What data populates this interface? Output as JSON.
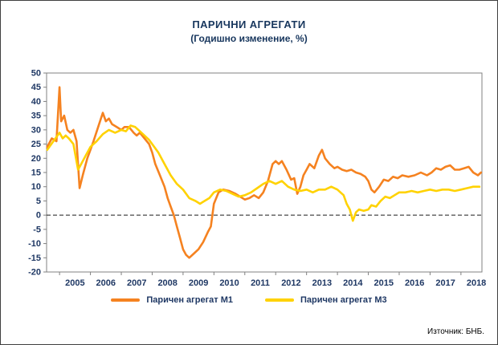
{
  "chart_data": {
    "type": "line",
    "title": "ПАРИЧНИ АГРЕГАТИ",
    "subtitle": "(Годишно изменение, %)",
    "xlabel": "",
    "ylabel": "",
    "source": "Източник: БНБ.",
    "grid": false,
    "zero_line": "dashed",
    "legend_position": "bottom",
    "xlim": [
      2004.58,
      2018.68
    ],
    "ylim": [
      -20,
      50
    ],
    "x_ticks": [
      2005,
      2006,
      2007,
      2008,
      2009,
      2010,
      2011,
      2012,
      2013,
      2014,
      2015,
      2016,
      2017,
      2018
    ],
    "y_ticks": [
      50,
      45,
      40,
      35,
      30,
      25,
      20,
      15,
      10,
      5,
      0,
      -5,
      -10,
      -15,
      -20
    ],
    "series": [
      {
        "name": "Паричен агрегат М1",
        "color": "#F58220",
        "x": [
          2004.6,
          2004.75,
          2004.9,
          2005.0,
          2005.05,
          2005.15,
          2005.25,
          2005.35,
          2005.45,
          2005.55,
          2005.65,
          2005.75,
          2005.9,
          2006.0,
          2006.1,
          2006.25,
          2006.4,
          2006.5,
          2006.6,
          2006.7,
          2006.85,
          2007.0,
          2007.1,
          2007.25,
          2007.4,
          2007.5,
          2007.6,
          2007.75,
          2007.9,
          2008.0,
          2008.1,
          2008.25,
          2008.4,
          2008.5,
          2008.6,
          2008.7,
          2008.8,
          2008.9,
          2009.0,
          2009.1,
          2009.2,
          2009.35,
          2009.5,
          2009.65,
          2009.8,
          2009.9,
          2010.0,
          2010.15,
          2010.3,
          2010.5,
          2010.7,
          2010.85,
          2011.0,
          2011.15,
          2011.3,
          2011.45,
          2011.6,
          2011.75,
          2011.9,
          2012.0,
          2012.1,
          2012.2,
          2012.35,
          2012.5,
          2012.6,
          2012.7,
          2012.8,
          2012.9,
          2013.0,
          2013.1,
          2013.25,
          2013.4,
          2013.5,
          2013.6,
          2013.75,
          2013.9,
          2014.0,
          2014.15,
          2014.3,
          2014.45,
          2014.6,
          2014.75,
          2014.9,
          2015.0,
          2015.1,
          2015.2,
          2015.35,
          2015.5,
          2015.65,
          2015.8,
          2015.95,
          2016.1,
          2016.3,
          2016.5,
          2016.7,
          2016.9,
          2017.05,
          2017.2,
          2017.35,
          2017.5,
          2017.65,
          2017.8,
          2017.95,
          2018.1,
          2018.25,
          2018.4,
          2018.55,
          2018.65
        ],
        "y": [
          24,
          27,
          26,
          45,
          33,
          35,
          30,
          29,
          30,
          26,
          9.5,
          14,
          20,
          23,
          26,
          31,
          36,
          33,
          34,
          32,
          31,
          30,
          31,
          31,
          29,
          28,
          29,
          27,
          25,
          22,
          18,
          14,
          10,
          6,
          3,
          0,
          -4,
          -8,
          -12,
          -14,
          -15,
          -13.5,
          -12,
          -9.5,
          -6,
          -4,
          4,
          8,
          9,
          8.5,
          7.5,
          6.5,
          5.5,
          6,
          7,
          6,
          8,
          12,
          18,
          19,
          18,
          19,
          16,
          12.5,
          13,
          7.5,
          10,
          14,
          16,
          18,
          16.5,
          21,
          23,
          20,
          18,
          16.5,
          17,
          16,
          15.5,
          16,
          15,
          14.5,
          13.5,
          12,
          9,
          8,
          10,
          12.5,
          12,
          13.5,
          13,
          14,
          13.5,
          14,
          15,
          14,
          15,
          16.5,
          16,
          17,
          17.5,
          16,
          16,
          16.5,
          17,
          15,
          14,
          15
        ]
      },
      {
        "name": "Паричен агрегат М3",
        "color": "#FFD200",
        "x": [
          2004.6,
          2004.8,
          2005.0,
          2005.1,
          2005.2,
          2005.3,
          2005.45,
          2005.6,
          2005.7,
          2005.85,
          2006.0,
          2006.2,
          2006.4,
          2006.6,
          2006.8,
          2007.0,
          2007.15,
          2007.3,
          2007.45,
          2007.6,
          2007.75,
          2007.9,
          2008.0,
          2008.2,
          2008.4,
          2008.6,
          2008.8,
          2009.0,
          2009.2,
          2009.4,
          2009.55,
          2009.7,
          2009.85,
          2010.0,
          2010.2,
          2010.4,
          2010.6,
          2010.8,
          2011.0,
          2011.2,
          2011.4,
          2011.6,
          2011.8,
          2012.0,
          2012.2,
          2012.4,
          2012.6,
          2012.8,
          2013.0,
          2013.2,
          2013.4,
          2013.6,
          2013.8,
          2014.0,
          2014.1,
          2014.2,
          2014.3,
          2014.4,
          2014.5,
          2014.6,
          2014.7,
          2014.85,
          2015.0,
          2015.1,
          2015.25,
          2015.4,
          2015.55,
          2015.7,
          2015.85,
          2016.0,
          2016.2,
          2016.4,
          2016.6,
          2016.8,
          2017.0,
          2017.2,
          2017.4,
          2017.6,
          2017.8,
          2018.0,
          2018.2,
          2018.4,
          2018.6
        ],
        "y": [
          23,
          26,
          29,
          27,
          28,
          27,
          25,
          16,
          18,
          21,
          24,
          26,
          28.5,
          30,
          29,
          30,
          29.5,
          31.5,
          31,
          29.5,
          28,
          26.5,
          25,
          22,
          18,
          14,
          11,
          9,
          6,
          5,
          4,
          5,
          6,
          8,
          9,
          8.5,
          7.5,
          6.5,
          7,
          8,
          9.5,
          11,
          12,
          11,
          12,
          10,
          9,
          8.5,
          9,
          8,
          9,
          9,
          10,
          9,
          8,
          7,
          4,
          2,
          -2,
          1,
          2,
          1.5,
          2,
          3.5,
          3,
          5,
          6.5,
          6,
          7,
          8,
          8,
          8.5,
          8,
          8.5,
          9,
          8.5,
          9,
          9,
          8.5,
          9,
          9.5,
          10,
          10
        ]
      }
    ]
  }
}
